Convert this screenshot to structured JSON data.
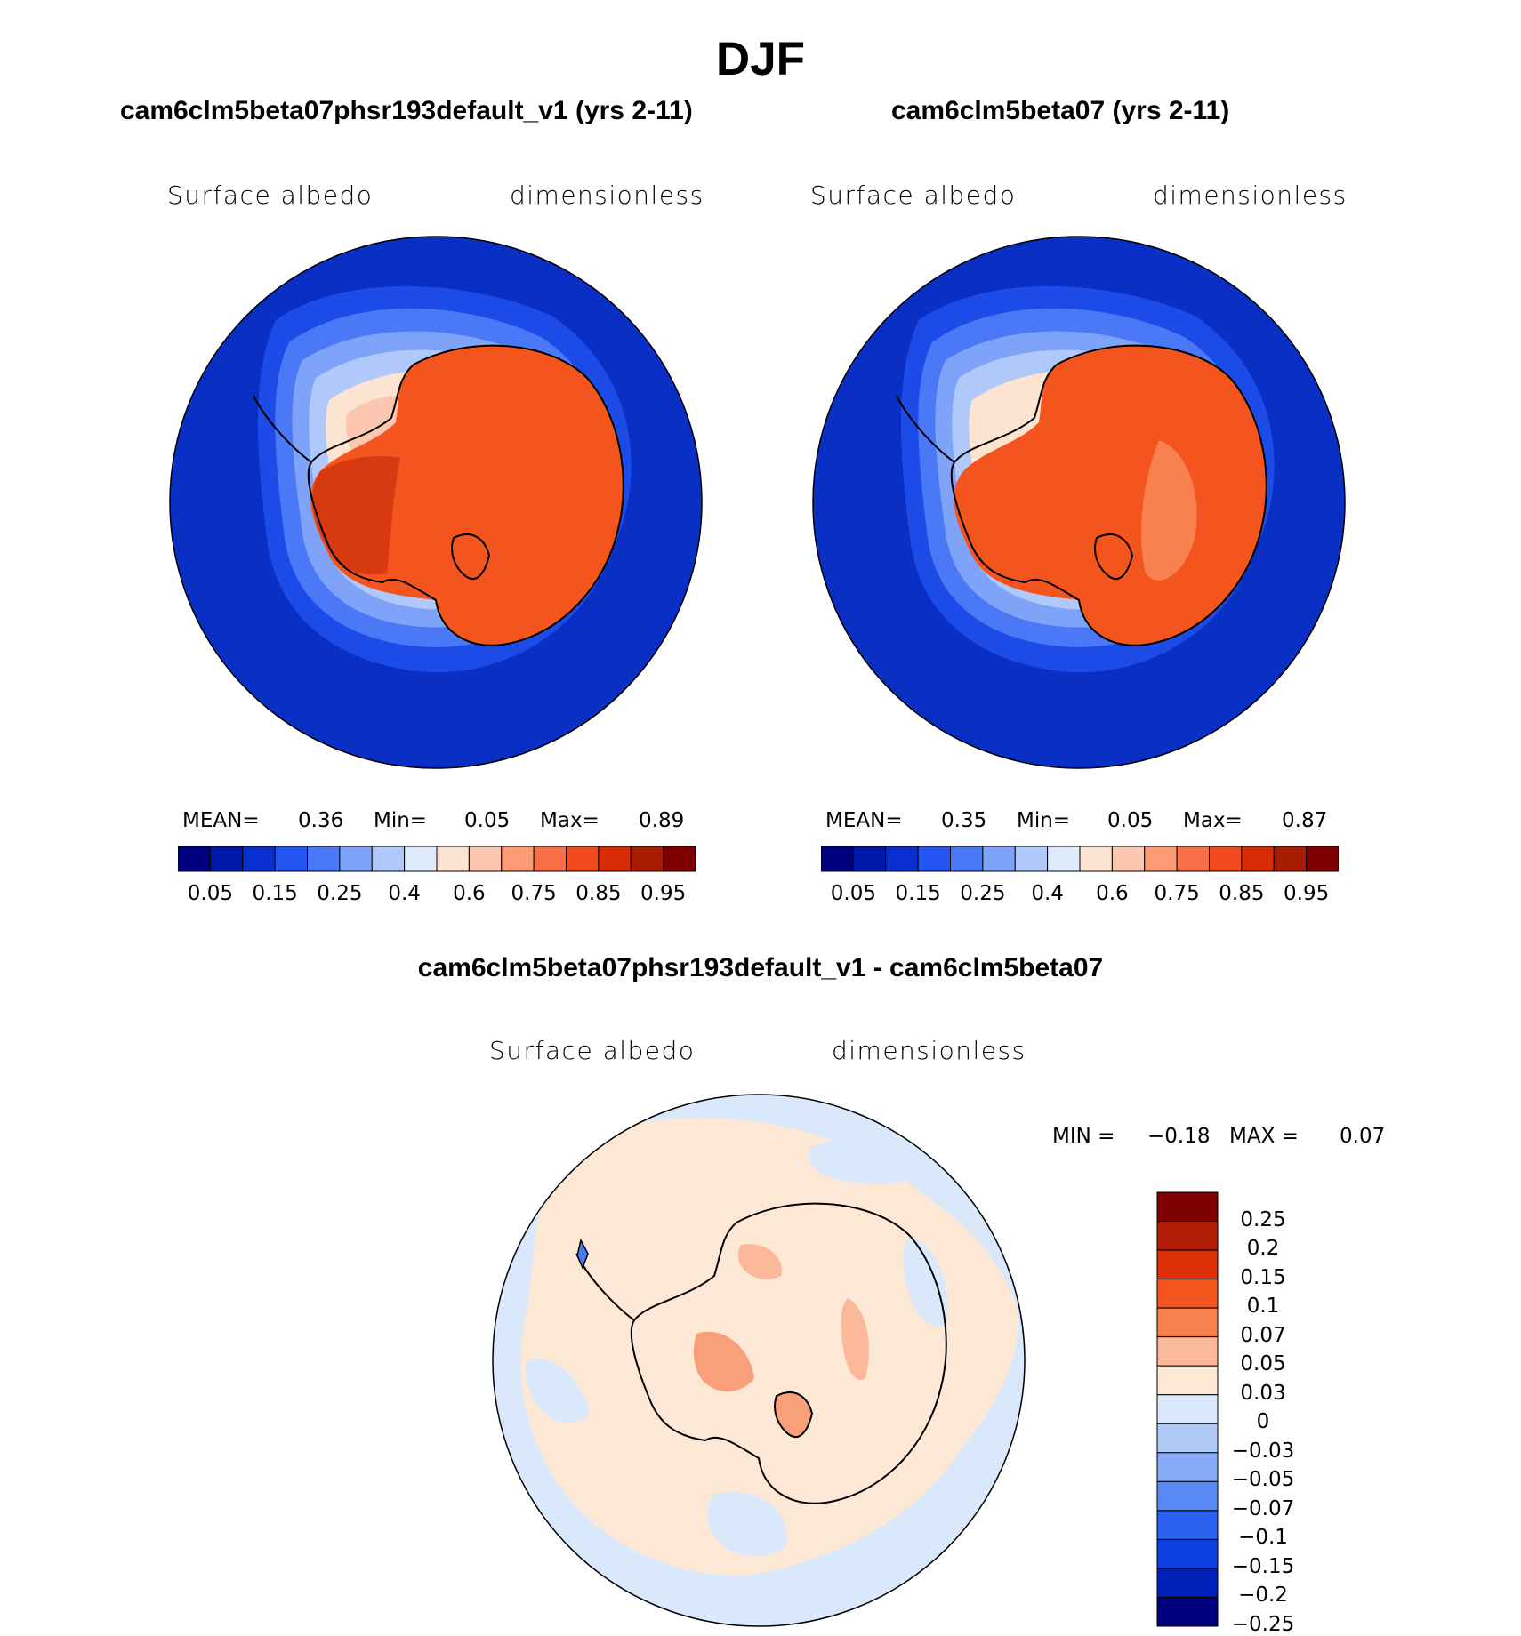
{
  "title": "DJF",
  "panels": [
    {
      "id": "test",
      "title": "cam6clm5beta07phsr193default_v1 (yrs 2-11)",
      "variable": "Surface albedo",
      "units": "dimensionless",
      "stats": {
        "mean_label": "MEAN=",
        "mean": "0.36",
        "min_label": "Min=",
        "min": "0.05",
        "max_label": "Max=",
        "max": "0.89"
      }
    },
    {
      "id": "control",
      "title": "cam6clm5beta07 (yrs 2-11)",
      "variable": "Surface albedo",
      "units": "dimensionless",
      "stats": {
        "mean_label": "MEAN=",
        "mean": "0.35",
        "min_label": "Min=",
        "min": "0.05",
        "max_label": "Max=",
        "max": "0.87"
      }
    }
  ],
  "abs_colorbar": {
    "colors": [
      "#00007f",
      "#0019a8",
      "#0a2fd0",
      "#2355f2",
      "#4a78f6",
      "#7fa3f8",
      "#b0c8fa",
      "#dfeafc",
      "#fde4d1",
      "#fcc7b0",
      "#fc9a76",
      "#f86e46",
      "#f14a1f",
      "#d92b06",
      "#a81c04",
      "#7f0000"
    ],
    "labels": [
      "0.05",
      "0.15",
      "0.25",
      "0.4",
      "0.6",
      "0.75",
      "0.85",
      "0.95"
    ]
  },
  "diff_panel": {
    "title": "cam6clm5beta07phsr193default_v1 - cam6clm5beta07",
    "variable": "Surface albedo",
    "units": "dimensionless",
    "stats": {
      "min_label": "MIN =",
      "min": "−0.18",
      "max_label": "MAX =",
      "max": "0.07"
    }
  },
  "diff_colorbar": {
    "colors_top_to_bottom": [
      "#7f0000",
      "#b01c05",
      "#dd3008",
      "#f4541d",
      "#f9804f",
      "#fcb99a",
      "#fde8d6",
      "#d9e8fb",
      "#b1cbf8",
      "#86aaf6",
      "#5788f3",
      "#2a62ef",
      "#0b3fe0",
      "#0021b9",
      "#00007f"
    ],
    "labels": [
      "0.25",
      "0.2",
      "0.15",
      "0.1",
      "0.07",
      "0.05",
      "0.03",
      "0",
      "−0.03",
      "−0.05",
      "−0.07",
      "−0.1",
      "−0.15",
      "−0.2",
      "−0.25"
    ]
  },
  "colors": {
    "ocean_low": "#0a2fc4",
    "ice_high": "#f4541d",
    "diff_pos": "#fde8d6",
    "diff_neg": "#d9e8fb",
    "coastline": "#000000"
  }
}
